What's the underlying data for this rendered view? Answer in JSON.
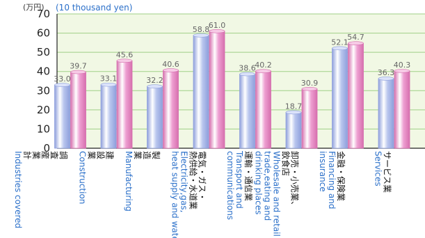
{
  "chart_data": {
    "type": "bar",
    "unit_jp": "(万円)",
    "unit_en": "(10 thousand yen)",
    "ylim": [
      0,
      70
    ],
    "yticks": [
      0,
      10,
      20,
      30,
      40,
      50,
      60,
      70
    ],
    "grid": true,
    "categories": [
      {
        "jp": [
          "調",
          "査",
          "産",
          "業",
          "計"
        ],
        "en": [
          "Industries covered"
        ]
      },
      {
        "jp": [
          "建",
          "設",
          "業"
        ],
        "en": [
          "Construction"
        ]
      },
      {
        "jp": [
          "製",
          "造",
          "業"
        ],
        "en": [
          "Manufacturing"
        ]
      },
      {
        "jp": [
          "電気・ガス・",
          "熱供給・水道業"
        ],
        "en": [
          "Electricity,gas,",
          "heat supply and water"
        ]
      },
      {
        "jp": [
          "運輸・通信業"
        ],
        "en": [
          "Transport and",
          "communications"
        ]
      },
      {
        "jp": [
          "卸売・小売業、",
          "飲食店"
        ],
        "en": [
          "Wholesale and retail",
          "trade,eating and",
          "drinking places"
        ]
      },
      {
        "jp": [
          "金融・保険業"
        ],
        "en": [
          "Financing and",
          "insurance"
        ]
      },
      {
        "jp": [
          "サービス業"
        ],
        "en": [
          "Services"
        ]
      }
    ],
    "series": [
      {
        "values": [
          33.0,
          33.1,
          32.2,
          58.8,
          38.6,
          18.7,
          52.1,
          36.3
        ]
      },
      {
        "values": [
          39.7,
          45.6,
          40.6,
          61.0,
          40.2,
          30.9,
          54.7,
          40.3
        ]
      }
    ],
    "value_labels": [
      [
        "33.0",
        "33.1",
        "32.2",
        "58.8",
        "38.6",
        "18.7",
        "52.1",
        "36.3"
      ],
      [
        "39.7",
        "45.6",
        "40.6",
        "61.0",
        "40.2",
        "30.9",
        "54.7",
        "40.3"
      ]
    ],
    "colors": {
      "series1": "#b9c6ee",
      "series1_edge": "#8e9fdc",
      "series2": "#ee9fd1",
      "series2_edge": "#d66fae",
      "plot_bg": "#f1f8e4",
      "grid": "#9fcf86"
    }
  }
}
